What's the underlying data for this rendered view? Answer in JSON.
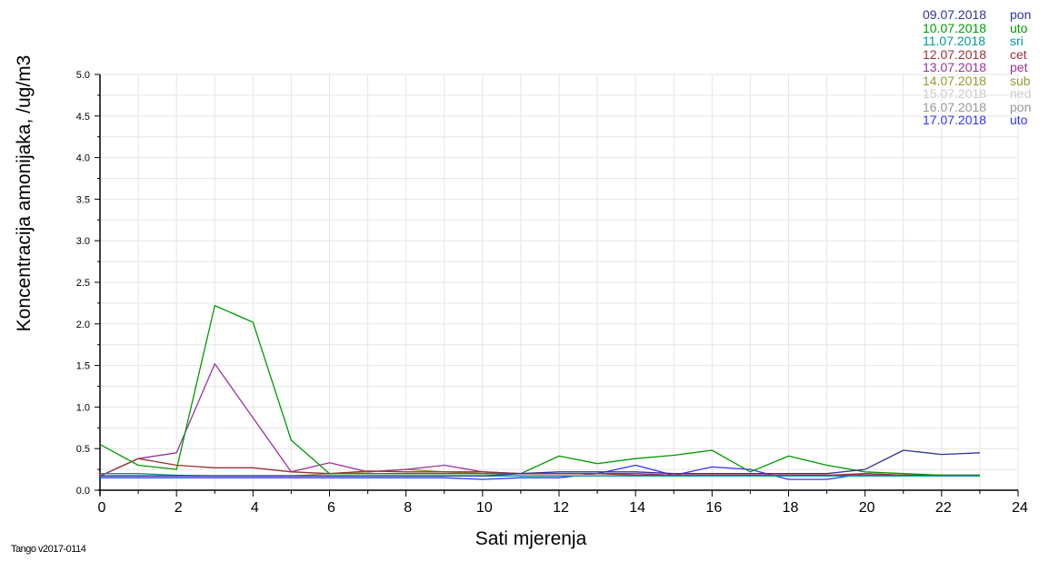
{
  "chart_data": {
    "type": "line",
    "xlabel": "Sati mjerenja",
    "ylabel": "Koncentracija amonijaka, /ug/m3",
    "xlim": [
      0,
      24
    ],
    "ylim": [
      0,
      5
    ],
    "x_ticks": [
      "0",
      "2",
      "4",
      "6",
      "8",
      "10",
      "12",
      "14",
      "16",
      "18",
      "20",
      "22",
      "24"
    ],
    "y_ticks": [
      "0.0",
      "0.5",
      "1.0",
      "1.5",
      "2.0",
      "2.5",
      "3.0",
      "3.5",
      "4.0",
      "4.5",
      "5.0"
    ],
    "grid": true,
    "legend_position": "top-right",
    "x": [
      0,
      1,
      2,
      3,
      4,
      5,
      6,
      7,
      8,
      9,
      10,
      11,
      12,
      13,
      14,
      15,
      16,
      17,
      18,
      19,
      20,
      21,
      22,
      23
    ],
    "series": [
      {
        "name": "09.07.2018",
        "day": "pon",
        "color": "#333399",
        "values": [
          0.17,
          0.17,
          0.17,
          0.17,
          0.17,
          0.17,
          0.17,
          0.17,
          0.17,
          0.17,
          0.17,
          0.2,
          0.22,
          0.22,
          0.22,
          0.2,
          0.2,
          0.2,
          0.2,
          0.2,
          0.25,
          0.48,
          0.43,
          0.45
        ]
      },
      {
        "name": "10.07.2018",
        "day": "uto",
        "color": "#009900",
        "values": [
          0.55,
          0.3,
          0.25,
          2.22,
          2.02,
          0.6,
          0.2,
          0.2,
          0.2,
          0.2,
          0.2,
          0.2,
          0.41,
          0.32,
          0.38,
          0.42,
          0.48,
          0.22,
          0.41,
          0.3,
          0.22,
          0.2,
          0.18,
          0.18
        ]
      },
      {
        "name": "11.07.2018",
        "day": "sri",
        "color": "#009999",
        "values": [
          0.2,
          0.2,
          0.18,
          0.17,
          0.17,
          0.17,
          0.17,
          0.17,
          0.17,
          0.17,
          0.17,
          0.17,
          0.17,
          0.17,
          0.17,
          0.17,
          0.17,
          0.17,
          0.17,
          0.17,
          0.17,
          0.17,
          0.17,
          0.17
        ]
      },
      {
        "name": "12.07.2018",
        "day": "cet",
        "color": "#993333",
        "values": [
          0.17,
          0.38,
          0.3,
          0.27,
          0.27,
          0.22,
          0.2,
          0.23,
          0.22,
          0.22,
          0.22,
          0.2,
          0.2,
          0.2,
          0.18,
          0.18,
          0.18,
          0.18,
          0.18,
          0.18,
          0.2,
          0.18,
          0.18,
          0.18
        ]
      },
      {
        "name": "13.07.2018",
        "day": "pet",
        "color": "#993399",
        "values": [
          0.17,
          0.38,
          0.45,
          1.52,
          0.87,
          0.22,
          0.33,
          0.22,
          0.25,
          0.3,
          0.22,
          0.2,
          0.2,
          0.2,
          0.2,
          0.18,
          0.18,
          0.18,
          0.18,
          0.18,
          0.18,
          0.18,
          0.18,
          0.18
        ]
      },
      {
        "name": "14.07.2018",
        "day": "sub",
        "color": "#999933",
        "values": [
          0.17,
          0.17,
          0.17,
          0.17,
          0.17,
          0.17,
          0.2,
          0.22,
          0.25,
          0.22,
          0.2,
          0.2,
          0.2,
          0.2,
          0.2,
          0.18,
          0.18,
          0.18,
          0.18,
          0.18,
          0.18,
          0.18,
          0.18,
          0.18
        ]
      },
      {
        "name": "15.07.2018",
        "day": "ned",
        "color": "#cccccc",
        "values": [
          0.18,
          0.18,
          0.18,
          0.18,
          0.18,
          0.18,
          0.18,
          0.18,
          0.18,
          0.18,
          0.18,
          0.18,
          0.18,
          0.18,
          0.18,
          0.18,
          0.18,
          0.18,
          0.18,
          0.18,
          0.18,
          0.18,
          0.18,
          0.18
        ]
      },
      {
        "name": "16.07.2018",
        "day": "pon",
        "color": "#999999",
        "values": [
          0.17,
          0.17,
          0.17,
          0.17,
          0.17,
          0.17,
          0.17,
          0.17,
          0.17,
          0.17,
          0.17,
          0.17,
          0.17,
          0.17,
          0.17,
          0.17,
          0.17,
          0.17,
          0.17,
          0.17,
          0.17,
          0.17,
          0.17,
          0.17
        ]
      },
      {
        "name": "17.07.2018",
        "day": "uto",
        "color": "#3333ff",
        "values": [
          0.15,
          0.15,
          0.15,
          0.15,
          0.15,
          0.15,
          0.15,
          0.15,
          0.15,
          0.15,
          0.13,
          0.15,
          0.15,
          0.2,
          0.3,
          0.18,
          0.28,
          0.25,
          0.13,
          0.13,
          0.2,
          0.18,
          0.18,
          0.18
        ]
      }
    ]
  },
  "footer": "Tango v2017-0114"
}
